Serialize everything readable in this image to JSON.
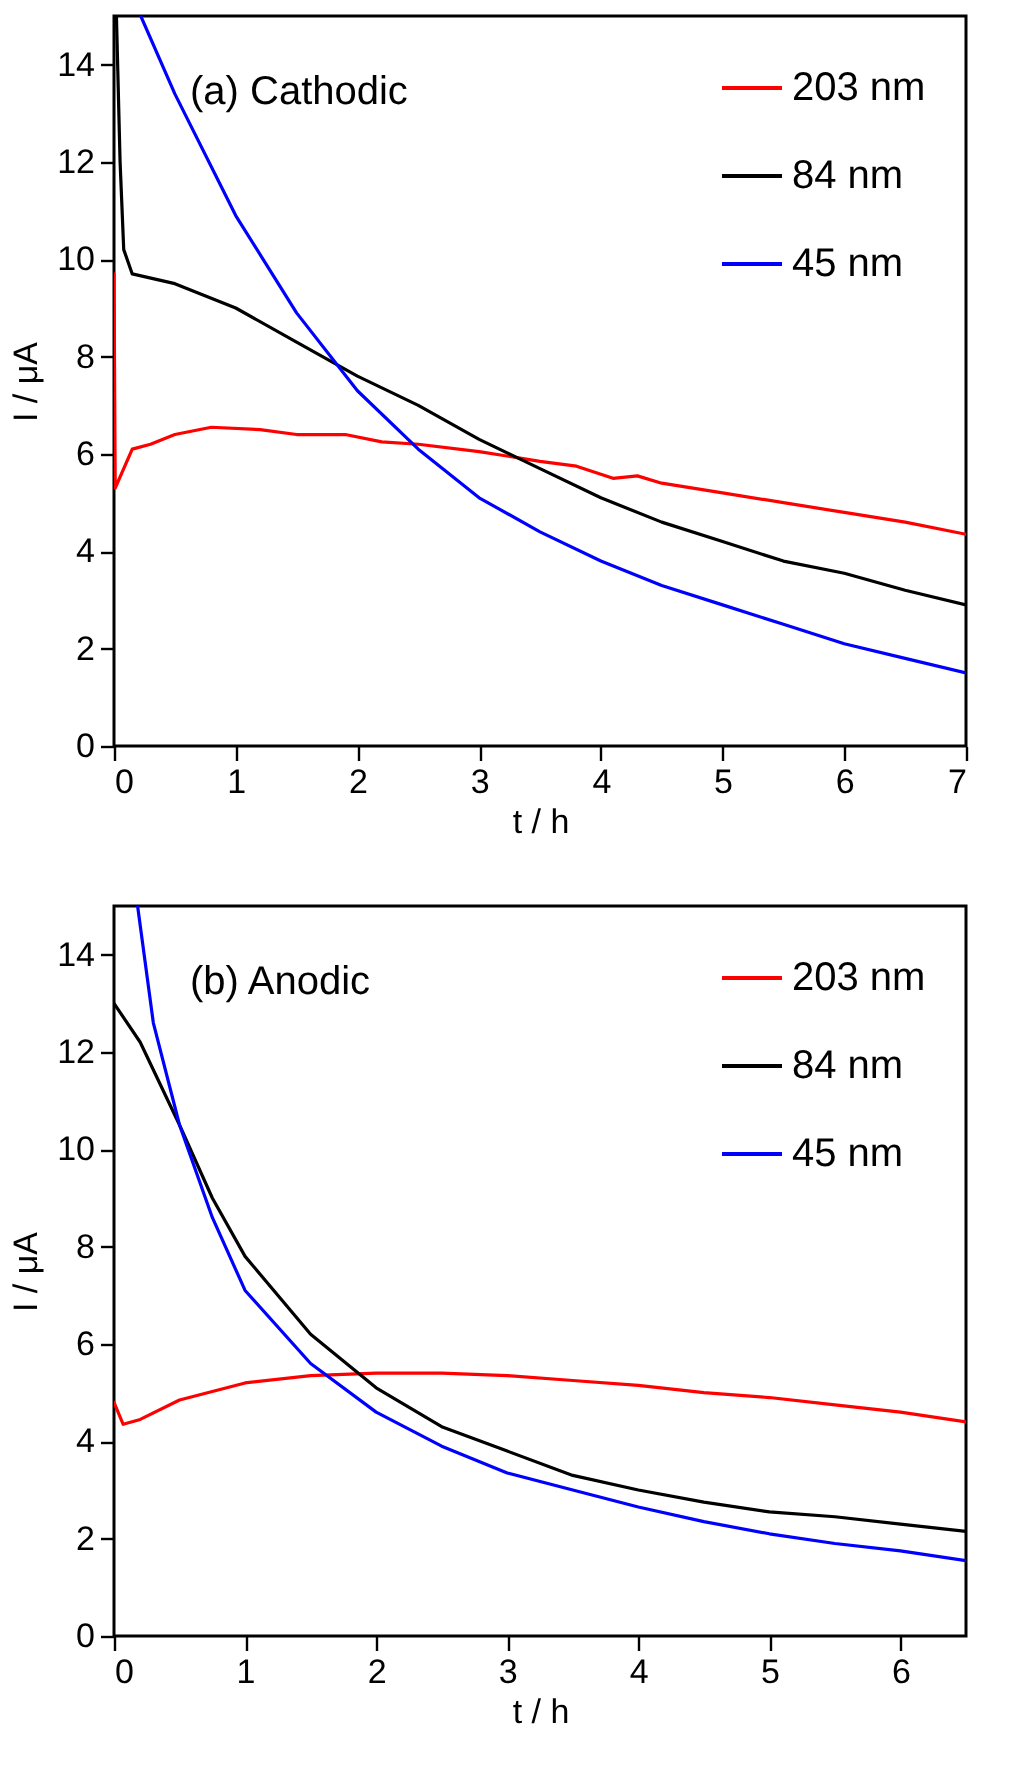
{
  "chart_data": [
    {
      "type": "line",
      "annotations": [
        "(a) Cathodic"
      ],
      "xlabel": "t / h",
      "ylabel": "I / μA",
      "xlim": [
        0,
        7
      ],
      "ylim": [
        0,
        15
      ],
      "xticks": [
        0,
        1,
        2,
        3,
        4,
        5,
        6,
        7
      ],
      "yticks": [
        0,
        2,
        4,
        6,
        8,
        10,
        12,
        14
      ],
      "legend": "top right",
      "series": [
        {
          "name": "203 nm",
          "color": "#ff0000",
          "x": [
            0,
            0.01,
            0.15,
            0.3,
            0.5,
            0.8,
            1.2,
            1.5,
            1.9,
            2.2,
            2.5,
            3,
            3.5,
            3.8,
            4.1,
            4.3,
            4.5,
            5,
            5.5,
            6,
            6.5,
            7
          ],
          "values": [
            9.7,
            5.3,
            6.1,
            6.2,
            6.4,
            6.55,
            6.5,
            6.4,
            6.4,
            6.25,
            6.2,
            6.05,
            5.85,
            5.75,
            5.5,
            5.55,
            5.4,
            5.2,
            5.0,
            4.8,
            4.6,
            4.35
          ]
        },
        {
          "name": "84 nm",
          "color": "#000000",
          "x": [
            0.02,
            0.05,
            0.08,
            0.15,
            0.5,
            1,
            1.5,
            2,
            2.5,
            3,
            3.5,
            4,
            4.5,
            5,
            5.5,
            6,
            6.5,
            7
          ],
          "values": [
            15,
            12,
            10.2,
            9.7,
            9.5,
            9.0,
            8.3,
            7.6,
            7.0,
            6.3,
            5.7,
            5.1,
            4.6,
            4.2,
            3.8,
            3.55,
            3.2,
            2.9
          ]
        },
        {
          "name": "45 nm",
          "color": "#0000ff",
          "x": [
            0.22,
            0.5,
            1,
            1.5,
            2,
            2.5,
            3,
            3.5,
            4,
            4.5,
            5,
            5.5,
            6,
            6.5,
            7
          ],
          "values": [
            15,
            13.4,
            10.9,
            8.9,
            7.3,
            6.1,
            5.1,
            4.4,
            3.8,
            3.3,
            2.9,
            2.5,
            2.1,
            1.8,
            1.5
          ]
        }
      ]
    },
    {
      "type": "line",
      "annotations": [
        "(b) Anodic"
      ],
      "xlabel": "t / h",
      "ylabel": "I / μA",
      "xlim": [
        0,
        6.5
      ],
      "ylim": [
        0,
        15
      ],
      "xticks": [
        0,
        1,
        2,
        3,
        4,
        5,
        6
      ],
      "yticks": [
        0,
        2,
        4,
        6,
        8,
        10,
        12,
        14
      ],
      "legend": "top right",
      "series": [
        {
          "name": "203 nm",
          "color": "#ff0000",
          "x": [
            0,
            0.07,
            0.2,
            0.5,
            1,
            1.5,
            2,
            2.5,
            3,
            3.5,
            4,
            4.5,
            5,
            5.5,
            6,
            6.5
          ],
          "values": [
            4.8,
            4.35,
            4.45,
            4.85,
            5.2,
            5.35,
            5.4,
            5.4,
            5.35,
            5.25,
            5.15,
            5.0,
            4.9,
            4.75,
            4.6,
            4.4
          ]
        },
        {
          "name": "84 nm",
          "color": "#000000",
          "x": [
            0,
            0.2,
            0.5,
            0.75,
            1,
            1.5,
            2,
            2.5,
            3,
            3.5,
            4,
            4.5,
            5,
            5.5,
            6,
            6.5
          ],
          "values": [
            13,
            12.2,
            10.5,
            9,
            7.8,
            6.2,
            5.1,
            4.3,
            3.8,
            3.3,
            3.0,
            2.75,
            2.55,
            2.45,
            2.3,
            2.15
          ]
        },
        {
          "name": "45 nm",
          "color": "#0000ff",
          "x": [
            0.18,
            0.3,
            0.5,
            0.75,
            1,
            1.5,
            2,
            2.5,
            3,
            3.5,
            4,
            4.5,
            5,
            5.5,
            6,
            6.5
          ],
          "values": [
            15,
            12.6,
            10.5,
            8.6,
            7.1,
            5.6,
            4.6,
            3.9,
            3.35,
            3.0,
            2.65,
            2.35,
            2.1,
            1.9,
            1.75,
            1.55
          ]
        }
      ]
    }
  ]
}
